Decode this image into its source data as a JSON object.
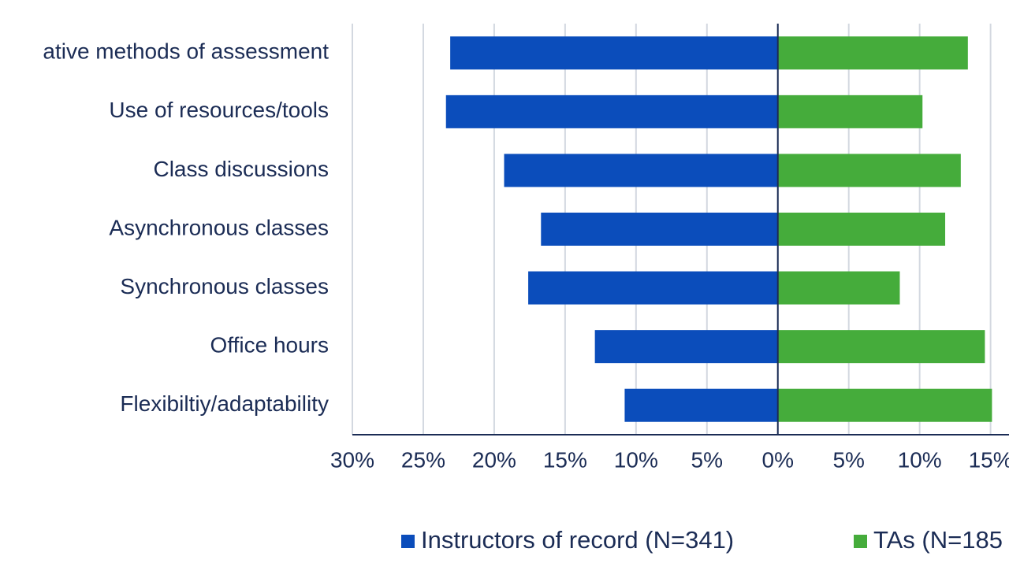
{
  "chart_data": {
    "type": "diverging-bar",
    "categories": [
      "ative methods of assessment",
      "Use of resources/tools",
      "Class discussions",
      "Asynchronous classes",
      "Synchronous classes",
      "Office hours",
      "Flexibiltiy/adaptability"
    ],
    "series": [
      {
        "name": "Instructors of record (N=341)",
        "color": "#0b4dbb",
        "values": [
          -23.1,
          -23.4,
          -19.3,
          -16.7,
          -17.6,
          -12.9,
          -10.8
        ]
      },
      {
        "name": "TAs (N=185",
        "color": "#45ac3b",
        "values": [
          13.4,
          10.2,
          12.9,
          11.8,
          8.6,
          14.6,
          15.1
        ]
      }
    ],
    "xlim": [
      -30,
      16.3
    ],
    "xticks": [
      {
        "value": -30,
        "label": "30%"
      },
      {
        "value": -25,
        "label": "25%"
      },
      {
        "value": -20,
        "label": "20%"
      },
      {
        "value": -15,
        "label": "15%"
      },
      {
        "value": -10,
        "label": "10%"
      },
      {
        "value": -5,
        "label": "5%"
      },
      {
        "value": 0,
        "label": "0%"
      },
      {
        "value": 5,
        "label": "5%"
      },
      {
        "value": 10,
        "label": "10%"
      },
      {
        "value": 15,
        "label": "15%"
      }
    ],
    "grid": true
  }
}
